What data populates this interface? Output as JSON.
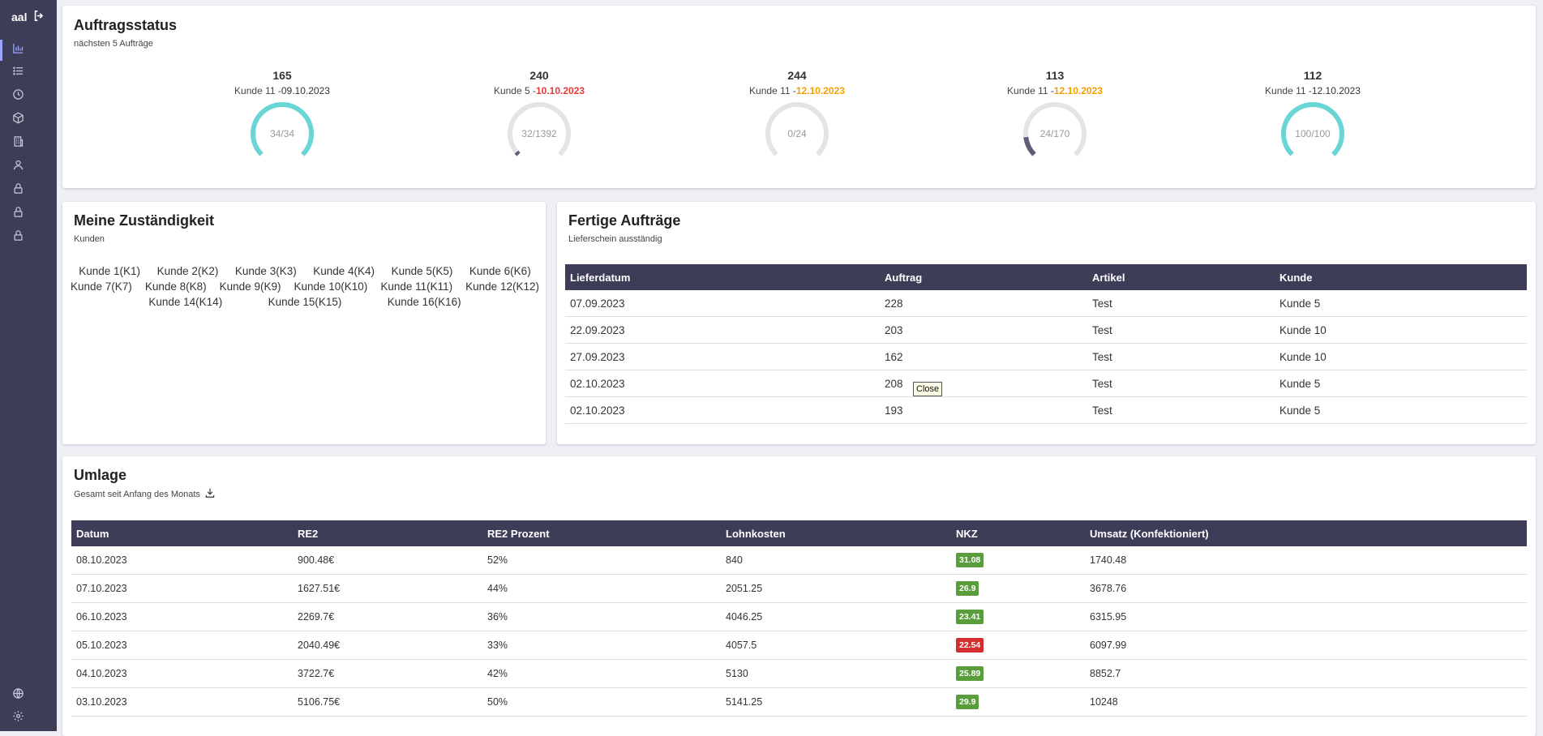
{
  "sidebar": {
    "brand": "aal",
    "nav": [
      {
        "name": "dashboard",
        "icon": "bar-chart-icon",
        "active": true
      },
      {
        "name": "list",
        "icon": "list-icon",
        "active": false
      },
      {
        "name": "history",
        "icon": "clock-icon",
        "active": false
      },
      {
        "name": "articles",
        "icon": "box-icon",
        "active": false
      },
      {
        "name": "building",
        "icon": "building-icon",
        "active": false
      },
      {
        "name": "users",
        "icon": "user-icon",
        "active": false
      },
      {
        "name": "lock-1",
        "icon": "lock-icon",
        "active": false
      },
      {
        "name": "lock-2",
        "icon": "lock-icon",
        "active": false
      },
      {
        "name": "lock-3",
        "icon": "lock-icon",
        "active": false
      }
    ],
    "bottom": [
      {
        "name": "language",
        "icon": "globe-icon"
      },
      {
        "name": "settings",
        "icon": "gear-icon"
      }
    ]
  },
  "status": {
    "title": "Auftragsstatus",
    "subtitle": "nächsten 5 Aufträge",
    "orders": [
      {
        "number": "165",
        "customer": "Kunde 11 -",
        "date": "09.10.2023",
        "date_style": "plain",
        "done": 34,
        "total": 34,
        "label": "34/34"
      },
      {
        "number": "240",
        "customer": "Kunde 5 -",
        "date": "10.10.2023",
        "date_style": "red",
        "done": 32,
        "total": 1392,
        "label": "32/1392"
      },
      {
        "number": "244",
        "customer": "Kunde 11 -",
        "date": "12.10.2023",
        "date_style": "orange",
        "done": 0,
        "total": 24,
        "label": "0/24"
      },
      {
        "number": "113",
        "customer": "Kunde 11 -",
        "date": "12.10.2023",
        "date_style": "orange",
        "done": 24,
        "total": 170,
        "label": "24/170"
      },
      {
        "number": "112",
        "customer": "Kunde 11 -",
        "date": "12.10.2023",
        "date_style": "plain",
        "done": 100,
        "total": 100,
        "label": "100/100"
      }
    ]
  },
  "responsibility": {
    "title": "Meine Zuständigkeit",
    "subtitle": "Kunden",
    "rows": [
      [
        "Kunde 1(K1)",
        "Kunde 2(K2)",
        "Kunde 3(K3)",
        "Kunde 4(K4)",
        "Kunde 5(K5)",
        "Kunde 6(K6)"
      ],
      [
        "Kunde 7(K7)",
        "Kunde 8(K8)",
        "Kunde 9(K9)",
        "Kunde 10(K10)",
        "Kunde 11(K11)",
        "Kunde 12(K12)"
      ],
      [
        "Kunde 14(K14)",
        "Kunde 15(K15)",
        "Kunde 16(K16)"
      ]
    ]
  },
  "finished": {
    "title": "Fertige Aufträge",
    "subtitle": "Lieferschein ausständig",
    "columns": [
      "Lieferdatum",
      "Auftrag",
      "Artikel",
      "Kunde"
    ],
    "rows": [
      [
        "07.09.2023",
        "228",
        "Test",
        "Kunde 5"
      ],
      [
        "22.09.2023",
        "203",
        "Test",
        "Kunde 10"
      ],
      [
        "27.09.2023",
        "162",
        "Test",
        "Kunde 10"
      ],
      [
        "02.10.2023",
        "208",
        "Test",
        "Kunde 5"
      ],
      [
        "02.10.2023",
        "193",
        "Test",
        "Kunde 5"
      ]
    ],
    "tooltip": "Close"
  },
  "umlage": {
    "title": "Umlage",
    "subtitle": "Gesamt seit Anfang des Monats",
    "download_icon": "download-icon",
    "columns": [
      "Datum",
      "RE2",
      "RE2 Prozent",
      "Lohnkosten",
      "NKZ",
      "Umsatz (Konfektioniert)"
    ],
    "rows": [
      {
        "datum": "08.10.2023",
        "re2": "900.48€",
        "pct": "52%",
        "lohn": "840",
        "nkz": "31.08",
        "nkz_color": "green",
        "umsatz": "1740.48"
      },
      {
        "datum": "07.10.2023",
        "re2": "1627.51€",
        "pct": "44%",
        "lohn": "2051.25",
        "nkz": "26.9",
        "nkz_color": "green",
        "umsatz": "3678.76"
      },
      {
        "datum": "06.10.2023",
        "re2": "2269.7€",
        "pct": "36%",
        "lohn": "4046.25",
        "nkz": "23.41",
        "nkz_color": "green",
        "umsatz": "6315.95"
      },
      {
        "datum": "05.10.2023",
        "re2": "2040.49€",
        "pct": "33%",
        "lohn": "4057.5",
        "nkz": "22.54",
        "nkz_color": "red",
        "umsatz": "6097.99"
      },
      {
        "datum": "04.10.2023",
        "re2": "3722.7€",
        "pct": "42%",
        "lohn": "5130",
        "nkz": "25.89",
        "nkz_color": "green",
        "umsatz": "8852.7"
      },
      {
        "datum": "03.10.2023",
        "re2": "5106.75€",
        "pct": "50%",
        "lohn": "5141.25",
        "nkz": "29.9",
        "nkz_color": "green",
        "umsatz": "10248"
      }
    ]
  },
  "colors": {
    "sidebar": "#3e3d58",
    "gauge_full": "#6ad5d5",
    "gauge_partial": "#5f5d77",
    "gauge_track": "#e4e4e4",
    "badge_green": "#5a9d3d",
    "badge_red": "#d32f2f"
  }
}
